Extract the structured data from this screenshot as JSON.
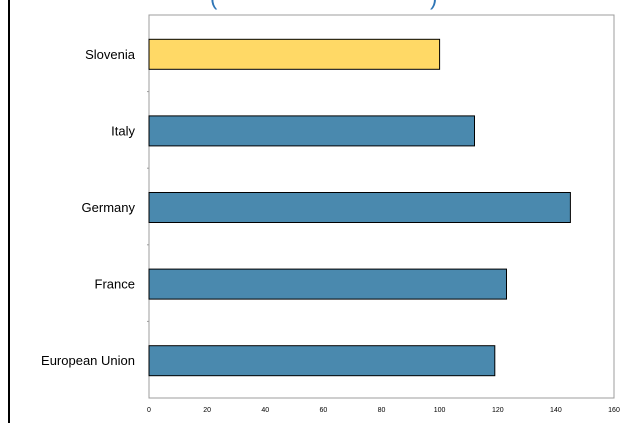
{
  "chart_data": {
    "type": "bar",
    "orientation": "horizontal",
    "title_partial": "(",
    "title_partial_right": ")",
    "categories": [
      "Slovenia",
      "Italy",
      "Germany",
      "France",
      "European Union"
    ],
    "values": [
      100,
      112,
      145,
      123,
      119
    ],
    "highlight_category": "Slovenia",
    "colors": {
      "highlight": "#ffd966",
      "default": "#4a89ae",
      "bar_stroke": "#000000",
      "title": "#2e75b6",
      "frame": "#9c9c9c"
    },
    "xlim": [
      0,
      160
    ],
    "xticks": [
      0,
      20,
      40,
      60,
      80,
      100,
      120,
      140,
      160
    ],
    "grid": false
  }
}
